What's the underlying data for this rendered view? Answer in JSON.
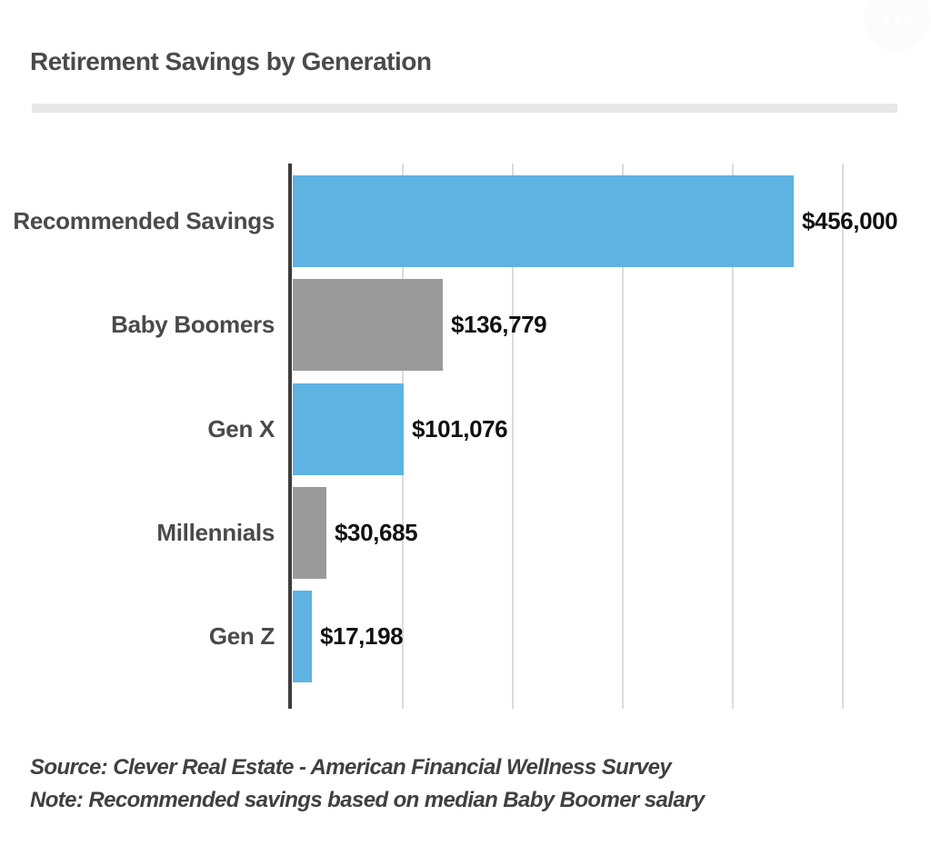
{
  "header": {
    "menu_icon": "ellipsis-icon"
  },
  "chart_data": {
    "type": "bar",
    "orientation": "horizontal",
    "title": "Retirement Savings by Generation",
    "categories": [
      "Recommended Savings",
      "Baby Boomers",
      "Gen X",
      "Millennials",
      "Gen Z"
    ],
    "values": [
      456000,
      136779,
      101076,
      30685,
      17198
    ],
    "value_labels": [
      "$456,000",
      "$136,779",
      "$101,076",
      "$30,685",
      "$17,198"
    ],
    "bar_colors": [
      "#5eb3e2",
      "#9a9a9a",
      "#5eb3e2",
      "#9a9a9a",
      "#5eb3e2"
    ],
    "xlabel": "",
    "ylabel": "",
    "xlim": [
      0,
      500000
    ],
    "gridline_step": 100000,
    "grid": true,
    "legend": false,
    "axis_tick_labels_visible": false
  },
  "footer": {
    "source_line": "Source: Clever Real Estate - American Financial Wellness Survey",
    "note_line": "Note: Recommended savings based on median Baby Boomer salary"
  },
  "colors": {
    "accent_blue": "#5eb3e2",
    "bar_gray": "#9a9a9a",
    "axis_line": "#3c3c3c",
    "gridline": "#dcdcdc",
    "divider": "#e7e7e7",
    "title_text": "#4a4a4a",
    "category_text": "#4a4a4a",
    "value_text": "#111111",
    "footer_text": "#404040",
    "menu_button_bg": "#fcfcfc"
  }
}
